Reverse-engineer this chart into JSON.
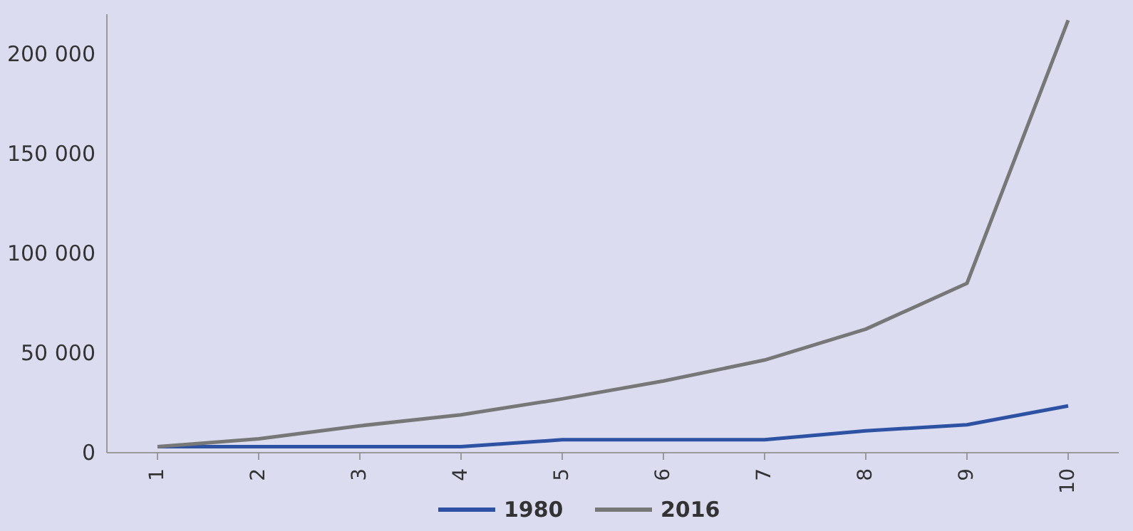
{
  "chart_data": {
    "type": "line",
    "categories": [
      "1",
      "2",
      "3",
      "4",
      "5",
      "6",
      "7",
      "8",
      "9",
      "10"
    ],
    "series": [
      {
        "name": "1980",
        "color": "#2e52a3",
        "values": [
          3000,
          3000,
          3000,
          3000,
          6500,
          6500,
          6500,
          11000,
          14000,
          23500
        ]
      },
      {
        "name": "2016",
        "color": "#777777",
        "values": [
          3000,
          7000,
          13500,
          19000,
          27000,
          36000,
          46500,
          62000,
          85000,
          217000
        ]
      }
    ],
    "ylim": [
      0,
      220000
    ],
    "yticks": [
      {
        "value": 0,
        "label": "0"
      },
      {
        "value": 50000,
        "label": "50 000"
      },
      {
        "value": 100000,
        "label": "100 000"
      },
      {
        "value": 150000,
        "label": "150 000"
      },
      {
        "value": 200000,
        "label": "200 000"
      }
    ],
    "grid": false,
    "legend": "bottom",
    "marker": "none",
    "line_style": "solid"
  }
}
